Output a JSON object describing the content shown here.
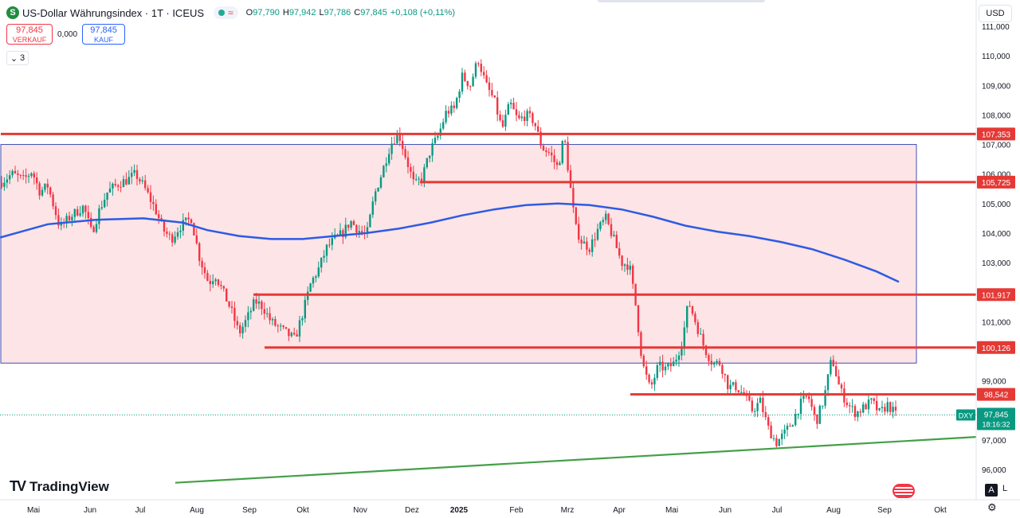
{
  "header": {
    "logo_letter": "S",
    "title": "US-Dollar Währungsindex · 1T · ICEUS",
    "ohlc": [
      {
        "k": "O",
        "v": "97,790"
      },
      {
        "k": "H",
        "v": "97,942"
      },
      {
        "k": "L",
        "v": "97,786"
      },
      {
        "k": "C",
        "v": "97,845"
      },
      {
        "k": "",
        "v": "+0,108 (+0,11%)"
      }
    ],
    "waves_icon": "≈"
  },
  "trade": {
    "sell_price": "97,845",
    "sell_label": "VERKAUF",
    "spread": "0,000",
    "buy_price": "97,845",
    "buy_label": "KAUF"
  },
  "indicators_count": "3",
  "currency": "USD",
  "brand": "TradingView",
  "buttons": {
    "auto": "A",
    "log": "L"
  },
  "colors": {
    "up": "#089981",
    "down": "#f23645",
    "level": "#e53935",
    "ma": "#2d5be3",
    "trend": "#43a047",
    "box_fill": "#fde4e6",
    "box_stroke": "#3f51b5"
  },
  "chart_data": {
    "type": "candlestick",
    "symbol": "DXY",
    "x_ticks": [
      "Mai",
      "Jun",
      "Jul",
      "Aug",
      "Sep",
      "Okt",
      "Nov",
      "Dez",
      "2025",
      "Feb",
      "Mrz",
      "Apr",
      "Mai",
      "Jun",
      "Jul",
      "Aug",
      "Sep",
      "Okt"
    ],
    "y_ticks": [
      "111,000",
      "110,000",
      "109,000",
      "108,000",
      "107,000",
      "106,000",
      "105,000",
      "104,000",
      "103,000",
      "102,000",
      "101,000",
      "99,000",
      "98,000",
      "97,000",
      "96,000"
    ],
    "ylim": [
      95.5,
      111.2
    ],
    "levels": [
      {
        "label": "107,353",
        "value": 107.353,
        "from": "left"
      },
      {
        "label": "105,725",
        "value": 105.725,
        "from": "Dez"
      },
      {
        "label": "101,917",
        "value": 101.917,
        "from": "Sep"
      },
      {
        "label": "100,126",
        "value": 100.126,
        "from": "Sep"
      },
      {
        "label": "98,542",
        "value": 98.542,
        "from": "Apr"
      }
    ],
    "range_box": {
      "top": 107.0,
      "bottom": 99.6
    },
    "last": {
      "symbol": "DXY",
      "price": "97,845",
      "value": 97.845,
      "countdown": "18:16:32"
    },
    "moving_average": [
      [
        0,
        103.85
      ],
      [
        60,
        104.3
      ],
      [
        120,
        104.45
      ],
      [
        180,
        104.5
      ],
      [
        230,
        104.35
      ],
      [
        260,
        104.1
      ],
      [
        300,
        103.9
      ],
      [
        340,
        103.8
      ],
      [
        380,
        103.8
      ],
      [
        420,
        103.9
      ],
      [
        460,
        104.0
      ],
      [
        500,
        104.15
      ],
      [
        540,
        104.35
      ],
      [
        580,
        104.6
      ],
      [
        620,
        104.8
      ],
      [
        660,
        104.95
      ],
      [
        700,
        105.0
      ],
      [
        740,
        104.95
      ],
      [
        780,
        104.8
      ],
      [
        820,
        104.55
      ],
      [
        860,
        104.25
      ],
      [
        900,
        104.05
      ],
      [
        940,
        103.9
      ],
      [
        980,
        103.7
      ],
      [
        1020,
        103.45
      ],
      [
        1060,
        103.1
      ],
      [
        1100,
        102.7
      ],
      [
        1128,
        102.35
      ]
    ],
    "trendline": [
      [
        220,
        95.55
      ],
      [
        1225,
        97.1
      ]
    ],
    "anchors": [
      [
        0,
        105.7
      ],
      [
        15,
        106.0
      ],
      [
        30,
        105.8
      ],
      [
        40,
        106.1
      ],
      [
        50,
        105.4
      ],
      [
        60,
        105.6
      ],
      [
        75,
        104.2
      ],
      [
        90,
        104.6
      ],
      [
        105,
        104.9
      ],
      [
        115,
        104.0
      ],
      [
        125,
        104.8
      ],
      [
        135,
        105.4
      ],
      [
        150,
        105.7
      ],
      [
        160,
        105.8
      ],
      [
        170,
        106.0
      ],
      [
        180,
        105.6
      ],
      [
        195,
        104.8
      ],
      [
        205,
        104.1
      ],
      [
        215,
        103.8
      ],
      [
        225,
        104.2
      ],
      [
        240,
        104.5
      ],
      [
        250,
        103.2
      ],
      [
        262,
        102.3
      ],
      [
        270,
        102.6
      ],
      [
        280,
        102.0
      ],
      [
        290,
        101.4
      ],
      [
        300,
        100.6
      ],
      [
        310,
        101.1
      ],
      [
        320,
        101.7
      ],
      [
        330,
        101.5
      ],
      [
        340,
        101.0
      ],
      [
        355,
        100.7
      ],
      [
        370,
        100.4
      ],
      [
        380,
        101.3
      ],
      [
        390,
        102.3
      ],
      [
        400,
        102.8
      ],
      [
        410,
        103.5
      ],
      [
        420,
        103.8
      ],
      [
        430,
        104.0
      ],
      [
        440,
        104.4
      ],
      [
        450,
        104.1
      ],
      [
        460,
        103.9
      ],
      [
        470,
        105.3
      ],
      [
        480,
        106.1
      ],
      [
        490,
        107.0
      ],
      [
        500,
        107.4
      ],
      [
        510,
        106.5
      ],
      [
        520,
        105.6
      ],
      [
        530,
        105.9
      ],
      [
        540,
        106.8
      ],
      [
        550,
        107.3
      ],
      [
        560,
        108.1
      ],
      [
        570,
        108.2
      ],
      [
        580,
        109.3
      ],
      [
        590,
        109.0
      ],
      [
        600,
        109.9
      ],
      [
        610,
        109.0
      ],
      [
        620,
        108.5
      ],
      [
        630,
        107.5
      ],
      [
        640,
        108.4
      ],
      [
        650,
        107.8
      ],
      [
        660,
        108.0
      ],
      [
        670,
        107.8
      ],
      [
        680,
        106.9
      ],
      [
        690,
        106.7
      ],
      [
        700,
        106.2
      ],
      [
        708,
        107.3
      ],
      [
        715,
        105.7
      ],
      [
        722,
        104.2
      ],
      [
        730,
        103.7
      ],
      [
        740,
        103.5
      ],
      [
        750,
        104.1
      ],
      [
        760,
        104.5
      ],
      [
        770,
        103.8
      ],
      [
        780,
        103.0
      ],
      [
        790,
        102.9
      ],
      [
        798,
        101.5
      ],
      [
        806,
        99.6
      ],
      [
        816,
        98.7
      ],
      [
        826,
        99.5
      ],
      [
        836,
        99.4
      ],
      [
        846,
        99.6
      ],
      [
        856,
        100.3
      ],
      [
        864,
        101.7
      ],
      [
        874,
        100.9
      ],
      [
        884,
        100.1
      ],
      [
        894,
        99.6
      ],
      [
        904,
        99.6
      ],
      [
        914,
        98.8
      ],
      [
        924,
        98.8
      ],
      [
        934,
        98.5
      ],
      [
        944,
        98.0
      ],
      [
        954,
        98.3
      ],
      [
        964,
        97.4
      ],
      [
        974,
        96.9
      ],
      [
        984,
        97.2
      ],
      [
        994,
        97.6
      ],
      [
        1004,
        98.2
      ],
      [
        1014,
        98.5
      ],
      [
        1024,
        97.6
      ],
      [
        1034,
        98.4
      ],
      [
        1044,
        99.8
      ],
      [
        1054,
        98.7
      ],
      [
        1064,
        98.2
      ],
      [
        1074,
        97.9
      ],
      [
        1084,
        98.1
      ],
      [
        1094,
        98.3
      ],
      [
        1104,
        97.9
      ],
      [
        1114,
        98.2
      ],
      [
        1124,
        97.85
      ]
    ]
  }
}
